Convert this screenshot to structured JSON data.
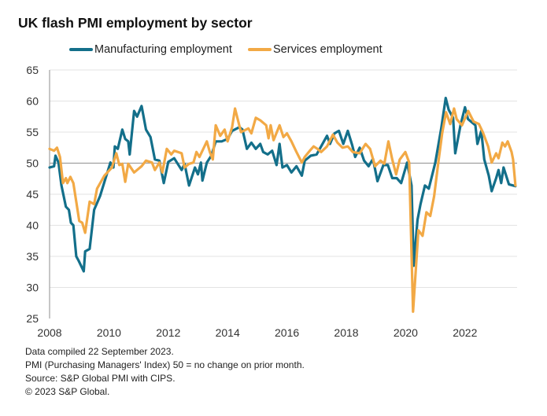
{
  "chart_data": {
    "type": "line",
    "title": "UK flash PMI employment by sector",
    "xlabel": "",
    "ylabel": "",
    "xlim": [
      2008,
      2024
    ],
    "ylim": [
      25,
      65
    ],
    "x_ticks": [
      2008,
      2010,
      2012,
      2014,
      2016,
      2018,
      2020,
      2022
    ],
    "y_ticks": [
      25,
      30,
      35,
      40,
      45,
      50,
      55,
      60,
      65
    ],
    "reference_line": 50,
    "grid": "horizontal",
    "legend_position": "top",
    "series": [
      {
        "name": "Manufacturing employment",
        "color": "#136f8a",
        "points": [
          [
            2008.0,
            49.3
          ],
          [
            2008.15,
            49.5
          ],
          [
            2008.2,
            51.2
          ],
          [
            2008.3,
            50.1
          ],
          [
            2008.4,
            46.4
          ],
          [
            2008.55,
            43
          ],
          [
            2008.65,
            42.5
          ],
          [
            2008.72,
            40.4
          ],
          [
            2008.8,
            40
          ],
          [
            2008.9,
            35
          ],
          [
            2008.98,
            34.3
          ],
          [
            2009.15,
            32.6
          ],
          [
            2009.2,
            35.8
          ],
          [
            2009.35,
            36.2
          ],
          [
            2009.5,
            42.5
          ],
          [
            2009.7,
            44.7
          ],
          [
            2010.05,
            50.1
          ],
          [
            2010.15,
            49.3
          ],
          [
            2010.2,
            52.7
          ],
          [
            2010.3,
            52.3
          ],
          [
            2010.45,
            55.4
          ],
          [
            2010.55,
            53.9
          ],
          [
            2010.65,
            53.5
          ],
          [
            2010.7,
            51.4
          ],
          [
            2010.85,
            58.4
          ],
          [
            2010.95,
            57.5
          ],
          [
            2011.1,
            59.2
          ],
          [
            2011.25,
            55.4
          ],
          [
            2011.4,
            54.2
          ],
          [
            2011.55,
            50.6
          ],
          [
            2011.7,
            50.4
          ],
          [
            2011.85,
            46.8
          ],
          [
            2012.0,
            50.2
          ],
          [
            2012.2,
            50.8
          ],
          [
            2012.45,
            48.9
          ],
          [
            2012.55,
            49.9
          ],
          [
            2012.7,
            46.4
          ],
          [
            2012.9,
            49.3
          ],
          [
            2013.0,
            48.2
          ],
          [
            2013.1,
            50.1
          ],
          [
            2013.15,
            47.2
          ],
          [
            2013.3,
            50.1
          ],
          [
            2013.45,
            51.2
          ],
          [
            2013.6,
            53.5
          ],
          [
            2013.8,
            53.5
          ],
          [
            2014.0,
            53.9
          ],
          [
            2014.15,
            55.2
          ],
          [
            2014.4,
            55.8
          ],
          [
            2014.5,
            55.4
          ],
          [
            2014.65,
            52.3
          ],
          [
            2014.8,
            53.3
          ],
          [
            2014.95,
            52.3
          ],
          [
            2015.1,
            53.1
          ],
          [
            2015.2,
            51.8
          ],
          [
            2015.35,
            51.4
          ],
          [
            2015.5,
            52
          ],
          [
            2015.65,
            49.7
          ],
          [
            2015.75,
            53.1
          ],
          [
            2015.85,
            49.3
          ],
          [
            2016.0,
            49.7
          ],
          [
            2016.15,
            48.5
          ],
          [
            2016.32,
            49.5
          ],
          [
            2016.5,
            48
          ],
          [
            2016.6,
            50.4
          ],
          [
            2016.8,
            51.2
          ],
          [
            2017.0,
            51.4
          ],
          [
            2017.15,
            52.7
          ],
          [
            2017.35,
            54.4
          ],
          [
            2017.45,
            53.1
          ],
          [
            2017.6,
            54.8
          ],
          [
            2017.75,
            55.2
          ],
          [
            2017.9,
            53.1
          ],
          [
            2018.05,
            55.2
          ],
          [
            2018.2,
            52.9
          ],
          [
            2018.3,
            51
          ],
          [
            2018.45,
            52.5
          ],
          [
            2018.6,
            50.4
          ],
          [
            2018.75,
            49.5
          ],
          [
            2018.9,
            50.7
          ],
          [
            2019.05,
            47.1
          ],
          [
            2019.25,
            49.7
          ],
          [
            2019.4,
            49.7
          ],
          [
            2019.55,
            47.6
          ],
          [
            2019.7,
            47.6
          ],
          [
            2019.85,
            46.8
          ],
          [
            2020.05,
            50.1
          ],
          [
            2020.2,
            46.4
          ],
          [
            2020.27,
            33.5
          ],
          [
            2020.4,
            40.9
          ],
          [
            2020.5,
            43.4
          ],
          [
            2020.65,
            46.4
          ],
          [
            2020.78,
            45.9
          ],
          [
            2021.0,
            50.1
          ],
          [
            2021.2,
            55.6
          ],
          [
            2021.35,
            60.5
          ],
          [
            2021.45,
            58.6
          ],
          [
            2021.6,
            57.3
          ],
          [
            2021.67,
            51.6
          ],
          [
            2021.85,
            56.1
          ],
          [
            2022.0,
            59
          ],
          [
            2022.1,
            57.1
          ],
          [
            2022.35,
            56.1
          ],
          [
            2022.42,
            53.1
          ],
          [
            2022.55,
            55.2
          ],
          [
            2022.65,
            50.6
          ],
          [
            2022.8,
            48
          ],
          [
            2022.9,
            45.5
          ],
          [
            2023.05,
            47.6
          ],
          [
            2023.13,
            48.9
          ],
          [
            2023.22,
            46.8
          ],
          [
            2023.3,
            49.3
          ],
          [
            2023.48,
            46.6
          ],
          [
            2023.7,
            46.3
          ]
        ]
      },
      {
        "name": "Services employment",
        "color": "#f2a945",
        "points": [
          [
            2008.0,
            52.3
          ],
          [
            2008.15,
            52
          ],
          [
            2008.25,
            52.5
          ],
          [
            2008.35,
            51
          ],
          [
            2008.45,
            46.8
          ],
          [
            2008.55,
            47.6
          ],
          [
            2008.6,
            46.8
          ],
          [
            2008.7,
            47.8
          ],
          [
            2008.8,
            46.8
          ],
          [
            2008.9,
            43.8
          ],
          [
            2009.0,
            40.7
          ],
          [
            2009.1,
            40.4
          ],
          [
            2009.2,
            38.8
          ],
          [
            2009.35,
            43.8
          ],
          [
            2009.5,
            43.4
          ],
          [
            2009.6,
            45.9
          ],
          [
            2009.85,
            48
          ],
          [
            2010.1,
            49.3
          ],
          [
            2010.25,
            51.6
          ],
          [
            2010.35,
            49.7
          ],
          [
            2010.45,
            49.9
          ],
          [
            2010.55,
            47
          ],
          [
            2010.65,
            49.9
          ],
          [
            2010.85,
            48.5
          ],
          [
            2011.1,
            49.5
          ],
          [
            2011.25,
            50.4
          ],
          [
            2011.45,
            50.1
          ],
          [
            2011.55,
            48.9
          ],
          [
            2011.7,
            50.1
          ],
          [
            2011.8,
            48.5
          ],
          [
            2011.95,
            52.3
          ],
          [
            2012.1,
            51.4
          ],
          [
            2012.2,
            52
          ],
          [
            2012.45,
            51.6
          ],
          [
            2012.55,
            49.3
          ],
          [
            2012.7,
            49.9
          ],
          [
            2012.85,
            50.1
          ],
          [
            2012.95,
            51.8
          ],
          [
            2013.05,
            51
          ],
          [
            2013.3,
            53.5
          ],
          [
            2013.4,
            51.8
          ],
          [
            2013.5,
            50.6
          ],
          [
            2013.6,
            56.1
          ],
          [
            2013.75,
            54.4
          ],
          [
            2013.9,
            55.4
          ],
          [
            2014.0,
            53.5
          ],
          [
            2014.15,
            55.8
          ],
          [
            2014.25,
            58.8
          ],
          [
            2014.45,
            55
          ],
          [
            2014.7,
            55.6
          ],
          [
            2014.8,
            54.8
          ],
          [
            2014.95,
            57.3
          ],
          [
            2015.1,
            56.9
          ],
          [
            2015.3,
            56.1
          ],
          [
            2015.38,
            54
          ],
          [
            2015.45,
            56.1
          ],
          [
            2015.55,
            53.7
          ],
          [
            2015.75,
            56.1
          ],
          [
            2015.88,
            54.2
          ],
          [
            2016.0,
            54.8
          ],
          [
            2016.15,
            53.5
          ],
          [
            2016.23,
            52.7
          ],
          [
            2016.32,
            51.8
          ],
          [
            2016.5,
            50.1
          ],
          [
            2016.6,
            51
          ],
          [
            2016.77,
            52
          ],
          [
            2016.9,
            52.7
          ],
          [
            2017.03,
            52.3
          ],
          [
            2017.15,
            51.8
          ],
          [
            2017.35,
            52.7
          ],
          [
            2017.55,
            54.6
          ],
          [
            2017.7,
            53.3
          ],
          [
            2017.87,
            52.5
          ],
          [
            2018.05,
            52.7
          ],
          [
            2018.22,
            51.8
          ],
          [
            2018.45,
            51.6
          ],
          [
            2018.65,
            53.1
          ],
          [
            2018.8,
            52.3
          ],
          [
            2018.97,
            49.5
          ],
          [
            2019.15,
            50.4
          ],
          [
            2019.28,
            49.9
          ],
          [
            2019.42,
            53.5
          ],
          [
            2019.55,
            50.6
          ],
          [
            2019.68,
            48.2
          ],
          [
            2019.8,
            50.6
          ],
          [
            2019.99,
            51.8
          ],
          [
            2020.12,
            50.1
          ],
          [
            2020.25,
            26.1
          ],
          [
            2020.43,
            39.2
          ],
          [
            2020.57,
            38.3
          ],
          [
            2020.7,
            42.1
          ],
          [
            2020.83,
            41.5
          ],
          [
            2020.96,
            44.7
          ],
          [
            2021.1,
            50.1
          ],
          [
            2021.23,
            54.8
          ],
          [
            2021.36,
            58.2
          ],
          [
            2021.5,
            56.3
          ],
          [
            2021.63,
            58.8
          ],
          [
            2021.72,
            57.1
          ],
          [
            2021.9,
            56.1
          ],
          [
            2022.11,
            58.4
          ],
          [
            2022.29,
            56.7
          ],
          [
            2022.47,
            56.3
          ],
          [
            2022.6,
            55
          ],
          [
            2022.78,
            52.7
          ],
          [
            2022.9,
            50.1
          ],
          [
            2023.05,
            51.6
          ],
          [
            2023.13,
            50.8
          ],
          [
            2023.26,
            53.3
          ],
          [
            2023.35,
            52.7
          ],
          [
            2023.44,
            53.5
          ],
          [
            2023.57,
            51.8
          ],
          [
            2023.62,
            50.6
          ],
          [
            2023.7,
            46.4
          ]
        ]
      }
    ]
  },
  "notes": [
    "Data compiled 22 September 2023.",
    "PMI (Purchasing Managers' Index) 50 = no change on prior month.",
    "Source: S&P Global PMI with CIPS.",
    "© 2023 S&P Global."
  ]
}
